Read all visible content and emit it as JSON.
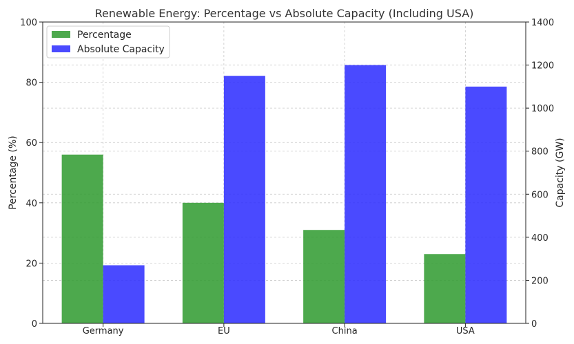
{
  "chart_data": {
    "type": "bar",
    "title": "Renewable Energy: Percentage vs Absolute Capacity (Including USA)",
    "xlabel": "",
    "categories": [
      "Germany",
      "EU",
      "China",
      "USA"
    ],
    "series": [
      {
        "name": "Percentage",
        "axis": "left",
        "color": "#2e9a2e",
        "values": [
          56,
          40,
          31,
          23
        ]
      },
      {
        "name": "Absolute Capacity",
        "axis": "right",
        "color": "#2a2aff",
        "values": [
          270,
          1150,
          1200,
          1100
        ]
      }
    ],
    "y_left": {
      "label": "Percentage (%)",
      "lim": [
        0,
        100
      ],
      "ticks": [
        0,
        20,
        40,
        60,
        80,
        100
      ]
    },
    "y_right": {
      "label": "Capacity (GW)",
      "lim": [
        0,
        1400
      ],
      "ticks": [
        0,
        200,
        400,
        600,
        800,
        1000,
        1200,
        1400
      ]
    },
    "grid": true,
    "legend_position": "top-left"
  }
}
